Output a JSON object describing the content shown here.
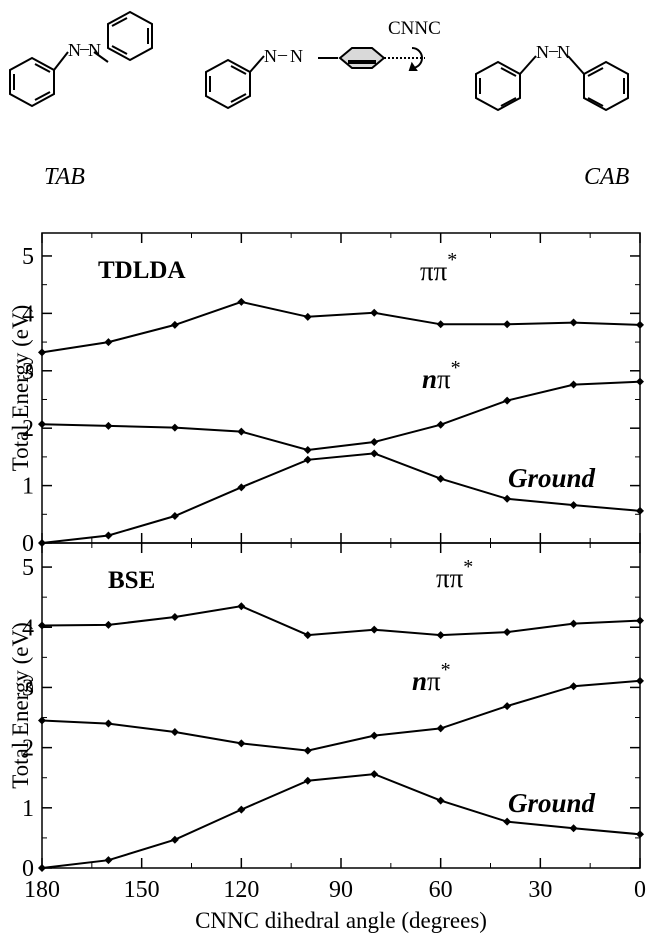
{
  "molecules": {
    "left_label": "TAB",
    "right_label": "CAB",
    "atom_n": "N",
    "bond": "–",
    "rotation_label": "CNNC"
  },
  "axes": {
    "xlabel": "CNNC dihedral angle (degrees)",
    "ylabel": "Total Energy (eV)",
    "xticks": [
      180,
      150,
      120,
      90,
      60,
      30,
      0
    ],
    "yticks": [
      0,
      1,
      2,
      3,
      4,
      5
    ]
  },
  "chart_data": [
    {
      "type": "line",
      "title": "TDLDA",
      "xlim": [
        180,
        0
      ],
      "ylim": [
        0,
        5.4
      ],
      "x": [
        180,
        160,
        140,
        120,
        100,
        80,
        60,
        40,
        20,
        0
      ],
      "series": [
        {
          "name": "ππ*",
          "name_prefix": "ππ",
          "name_sup": "*",
          "values": [
            3.32,
            3.5,
            3.8,
            4.2,
            3.94,
            4.01,
            3.81,
            3.81,
            3.84,
            3.8
          ]
        },
        {
          "name": "nπ*",
          "name_prefix": "nπ",
          "name_sup": "*",
          "values": [
            2.07,
            2.04,
            2.01,
            1.94,
            1.62,
            1.76,
            2.06,
            2.48,
            2.76,
            2.81
          ]
        },
        {
          "name": "Ground",
          "name_prefix": "Ground",
          "name_sup": "",
          "values": [
            0.0,
            0.13,
            0.47,
            0.97,
            1.45,
            1.56,
            1.12,
            0.77,
            0.66,
            0.56
          ]
        }
      ]
    },
    {
      "type": "line",
      "title": "BSE",
      "xlim": [
        180,
        0
      ],
      "ylim": [
        0,
        5.4
      ],
      "x": [
        180,
        160,
        140,
        120,
        100,
        80,
        60,
        40,
        20,
        0
      ],
      "series": [
        {
          "name": "ππ*",
          "name_prefix": "ππ",
          "name_sup": "*",
          "values": [
            4.03,
            4.04,
            4.17,
            4.35,
            3.87,
            3.96,
            3.87,
            3.92,
            4.06,
            4.11
          ]
        },
        {
          "name": "nπ*",
          "name_prefix": "nπ",
          "name_sup": "*",
          "values": [
            2.45,
            2.4,
            2.26,
            2.07,
            1.95,
            2.2,
            2.32,
            2.69,
            3.02,
            3.11
          ]
        },
        {
          "name": "Ground",
          "name_prefix": "Ground",
          "name_sup": "",
          "values": [
            0.0,
            0.13,
            0.47,
            0.97,
            1.45,
            1.56,
            1.12,
            0.77,
            0.66,
            0.56
          ]
        }
      ]
    }
  ]
}
